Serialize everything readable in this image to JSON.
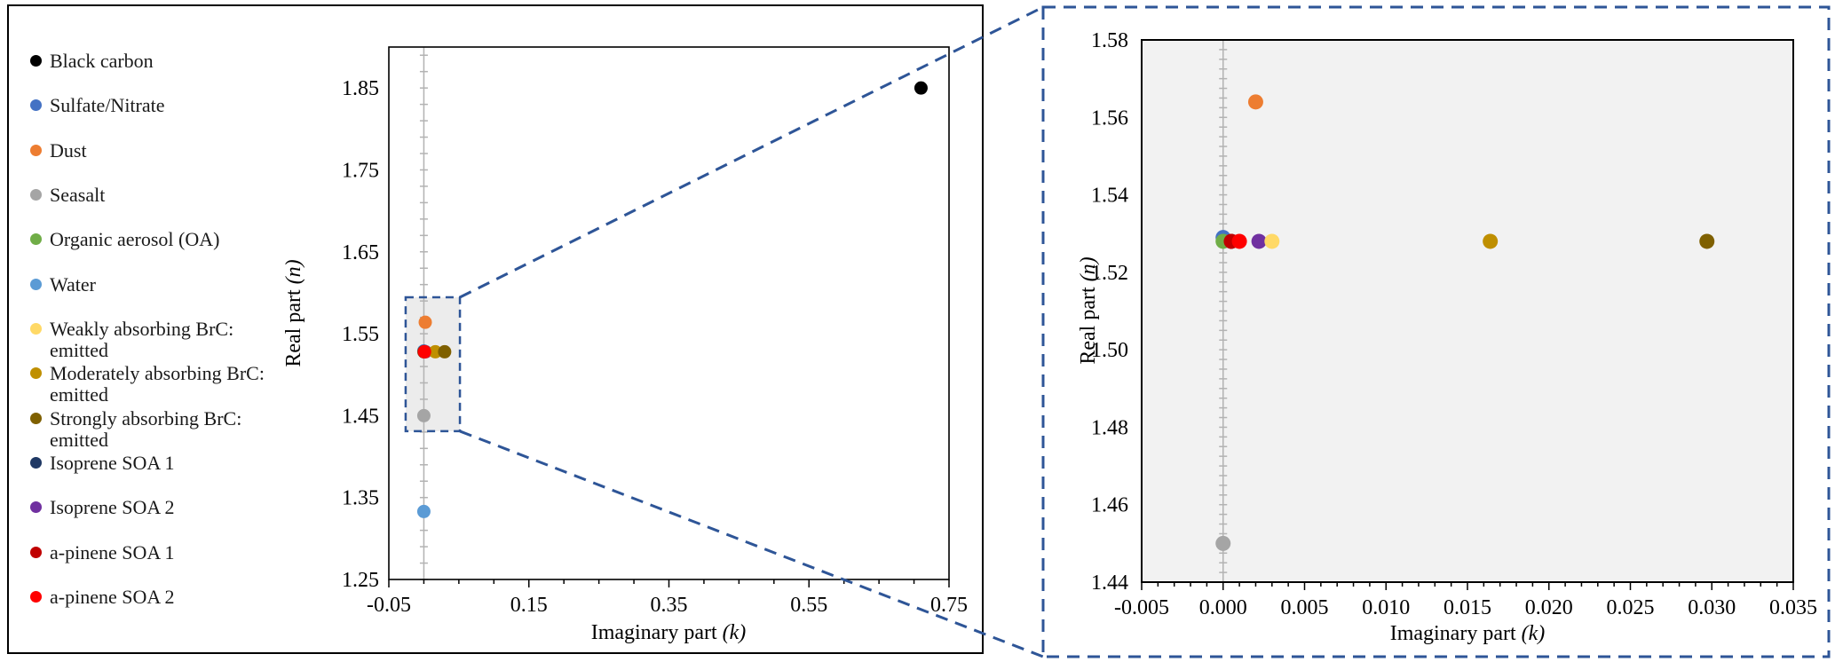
{
  "figure": {
    "description": "Complex refractive index of aerosol species: main scatter plot with zoomed inset",
    "x_axis_title_text": "Imaginary part ",
    "x_axis_title_var": "(k)",
    "y_axis_title_text": "Real part ",
    "y_axis_title_var": "(n)"
  },
  "colors": {
    "inset_border": "#2E5597",
    "connector": "#2E5597",
    "zoom_box_border": "#2E5597",
    "zoom_box_fill": "#ECECEC",
    "gridline": "#B3B3B3",
    "axis": "#000000",
    "inset_plot_bg": "#F2F2F2",
    "text": "#000000"
  },
  "legend": {
    "items": [
      {
        "label": "Black carbon",
        "color": "#000000"
      },
      {
        "label": "Sulfate/Nitrate",
        "color": "#4472C4"
      },
      {
        "label": "Dust",
        "color": "#ED7D31"
      },
      {
        "label": "Seasalt",
        "color": "#A5A5A5"
      },
      {
        "label": "Organic aerosol (OA)",
        "color": "#70AD47"
      },
      {
        "label": "Water",
        "color": "#5B9BD5"
      },
      {
        "label": "Weakly absorbing BrC:\nemitted",
        "color": "#FFD966"
      },
      {
        "label": "Moderately absorbing BrC:\nemitted",
        "color": "#BF8F00"
      },
      {
        "label": "Strongly absorbing BrC:\nemitted",
        "color": "#7F6000"
      },
      {
        "label": "Isoprene SOA 1",
        "color": "#1F3864"
      },
      {
        "label": "Isoprene SOA 2",
        "color": "#7030A0"
      },
      {
        "label": "a-pinene SOA 1",
        "color": "#C00000"
      },
      {
        "label": "a-pinene SOA 2",
        "color": "#FF0000"
      }
    ]
  },
  "chart_data": [
    {
      "id": "main",
      "type": "scatter",
      "title": "",
      "xlabel": "Imaginary part (k)",
      "xlabel_text": "Imaginary part ",
      "xlabel_var": "(k)",
      "ylabel": "Real part (n)",
      "ylabel_text": "Real part ",
      "ylabel_var": "(n)",
      "xlim": [
        -0.05,
        0.75
      ],
      "ylim": [
        1.25,
        1.9
      ],
      "x_tick_labels": [
        "-0.05",
        "0.15",
        "0.35",
        "0.55",
        "0.75"
      ],
      "y_tick_labels": [
        "1.25",
        "1.35",
        "1.45",
        "1.55",
        "1.65",
        "1.75",
        "1.85"
      ],
      "x_minor_step": 0.05,
      "x_minors_per_major": 4,
      "y_minor_step": 0.02,
      "y_minors_per_major": 5,
      "grid_x_at": 0,
      "zoom_region": {
        "x0": -0.026,
        "x1": 0.0515,
        "y0": 1.431,
        "y1": 1.5945
      },
      "points": [
        {
          "name": "Black carbon",
          "x": 0.71,
          "y": 1.85,
          "color": "#000000"
        },
        {
          "name": "Dust",
          "x": 0.002,
          "y": 1.564,
          "color": "#ED7D31"
        },
        {
          "name": "Seasalt",
          "x": 0.0,
          "y": 1.45,
          "color": "#A5A5A5"
        },
        {
          "name": "Water",
          "x": 0.0,
          "y": 1.333,
          "color": "#5B9BD5"
        },
        {
          "name": "Sulfate/Nitrate",
          "x": 0.0,
          "y": 1.529,
          "color": "#4472C4"
        },
        {
          "name": "Organic aerosol (OA)",
          "x": 0.0,
          "y": 1.528,
          "color": "#70AD47"
        },
        {
          "name": "Weakly absorbing BrC: emitted",
          "x": 0.003,
          "y": 1.528,
          "color": "#FFD966"
        },
        {
          "name": "Isoprene SOA 1",
          "x": 0.0005,
          "y": 1.528,
          "color": "#1F3864"
        },
        {
          "name": "Isoprene SOA 2",
          "x": 0.0022,
          "y": 1.528,
          "color": "#7030A0"
        },
        {
          "name": "Moderately absorbing BrC: emitted",
          "x": 0.0164,
          "y": 1.528,
          "color": "#BF8F00"
        },
        {
          "name": "Strongly absorbing BrC: emitted",
          "x": 0.0297,
          "y": 1.528,
          "color": "#7F6000"
        },
        {
          "name": "a-pinene SOA 1",
          "x": 0.0005,
          "y": 1.528,
          "color": "#C00000"
        },
        {
          "name": "a-pinene SOA 2",
          "x": 0.001,
          "y": 1.528,
          "color": "#FF0000"
        }
      ]
    },
    {
      "id": "inset",
      "type": "scatter",
      "title": "",
      "xlabel": "Imaginary part (k)",
      "xlabel_text": "Imaginary part ",
      "xlabel_var": "(k)",
      "ylabel": "Real part (n)",
      "ylabel_text": "Real part ",
      "ylabel_var": "(n)",
      "xlim": [
        -0.005,
        0.035
      ],
      "ylim": [
        1.44,
        1.58
      ],
      "x_tick_labels": [
        "-0.005",
        "0.000",
        "0.005",
        "0.010",
        "0.015",
        "0.020",
        "0.025",
        "0.030",
        "0.035"
      ],
      "y_tick_labels": [
        "1.44",
        "1.46",
        "1.48",
        "1.50",
        "1.52",
        "1.54",
        "1.56",
        "1.58"
      ],
      "x_minor_step": 0.001,
      "x_minors_per_major": 5,
      "y_minor_step": 0.0025,
      "y_minors_per_major": 8,
      "grid_x_at": 0,
      "plot_bg": "#F2F2F2",
      "points": [
        {
          "name": "Isoprene SOA 1",
          "x": 0.0005,
          "y": 1.528,
          "color": "#1F3864"
        },
        {
          "name": "Sulfate/Nitrate",
          "x": 0.0,
          "y": 1.529,
          "color": "#4472C4"
        },
        {
          "name": "Organic aerosol (OA)",
          "x": 0.0,
          "y": 1.528,
          "color": "#70AD47"
        },
        {
          "name": "a-pinene SOA 1",
          "x": 0.0005,
          "y": 1.528,
          "color": "#C00000"
        },
        {
          "name": "a-pinene SOA 2",
          "x": 0.001,
          "y": 1.528,
          "color": "#FF0000"
        },
        {
          "name": "Isoprene SOA 2",
          "x": 0.0022,
          "y": 1.528,
          "color": "#7030A0"
        },
        {
          "name": "Weakly absorbing BrC: emitted",
          "x": 0.003,
          "y": 1.528,
          "color": "#FFD966"
        },
        {
          "name": "Moderately absorbing BrC: emitted",
          "x": 0.0164,
          "y": 1.528,
          "color": "#BF8F00"
        },
        {
          "name": "Strongly absorbing BrC: emitted",
          "x": 0.0297,
          "y": 1.528,
          "color": "#7F6000"
        },
        {
          "name": "Dust",
          "x": 0.002,
          "y": 1.564,
          "color": "#ED7D31"
        },
        {
          "name": "Seasalt",
          "x": 0.0,
          "y": 1.45,
          "color": "#A5A5A5"
        }
      ]
    }
  ]
}
